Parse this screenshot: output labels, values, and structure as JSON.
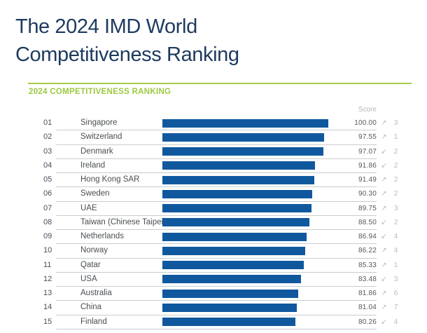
{
  "header": {
    "title_line1": "The 2024 IMD World",
    "title_line2": "Competitiveness Ranking"
  },
  "icons": {
    "up": "↗",
    "down": "↙"
  },
  "colors": {
    "title_navy": "#1d3a5f",
    "bar_blue": "#10589e",
    "green_accent": "#9dc63e",
    "muted_gray": "#b9bcc0",
    "score_gray": "#54585c",
    "separator_gray": "#c9cdd0"
  },
  "chart_data": {
    "type": "bar",
    "title": "2024 COMPETITIVENESS RANKING",
    "score_header": "Score",
    "xlabel": "",
    "ylabel": "",
    "xlim": [
      0,
      100
    ],
    "grid": false,
    "legend": false,
    "orientation": "horizontal",
    "categories": [
      "Singapore",
      "Switzerland",
      "Denmark",
      "Ireland",
      "Hong Kong SAR",
      "Sweden",
      "UAE",
      "Taiwan (Chinese Taipei)",
      "Netherlands",
      "Norway",
      "Qatar",
      "USA",
      "Australia",
      "China",
      "Finland"
    ],
    "values": [
      100.0,
      97.55,
      97.07,
      91.86,
      91.49,
      90.3,
      89.75,
      88.5,
      86.94,
      86.22,
      85.33,
      83.48,
      81.86,
      81.04,
      80.26
    ],
    "rows": [
      {
        "rank": "01",
        "country": "Singapore",
        "score": "100.00",
        "trend": "up",
        "change": "3"
      },
      {
        "rank": "02",
        "country": "Switzerland",
        "score": "97.55",
        "trend": "up",
        "change": "1"
      },
      {
        "rank": "03",
        "country": "Denmark",
        "score": "97.07",
        "trend": "down",
        "change": "2"
      },
      {
        "rank": "04",
        "country": "Ireland",
        "score": "91.86",
        "trend": "down",
        "change": "2"
      },
      {
        "rank": "05",
        "country": "Hong Kong SAR",
        "score": "91.49",
        "trend": "up",
        "change": "2"
      },
      {
        "rank": "06",
        "country": "Sweden",
        "score": "90.30",
        "trend": "up",
        "change": "2"
      },
      {
        "rank": "07",
        "country": "UAE",
        "score": "89.75",
        "trend": "up",
        "change": "3"
      },
      {
        "rank": "08",
        "country": "Taiwan (Chinese Taipei)",
        "score": "88.50",
        "trend": "down",
        "change": "2"
      },
      {
        "rank": "09",
        "country": "Netherlands",
        "score": "86.94",
        "trend": "down",
        "change": "4"
      },
      {
        "rank": "10",
        "country": "Norway",
        "score": "86.22",
        "trend": "up",
        "change": "4"
      },
      {
        "rank": "11",
        "country": "Qatar",
        "score": "85.33",
        "trend": "up",
        "change": "1"
      },
      {
        "rank": "12",
        "country": "USA",
        "score": "83.48",
        "trend": "down",
        "change": "3"
      },
      {
        "rank": "13",
        "country": "Australia",
        "score": "81.86",
        "trend": "up",
        "change": "6"
      },
      {
        "rank": "14",
        "country": "China",
        "score": "81.04",
        "trend": "up",
        "change": "7"
      },
      {
        "rank": "15",
        "country": "Finland",
        "score": "80.26",
        "trend": "down",
        "change": "4"
      }
    ]
  }
}
